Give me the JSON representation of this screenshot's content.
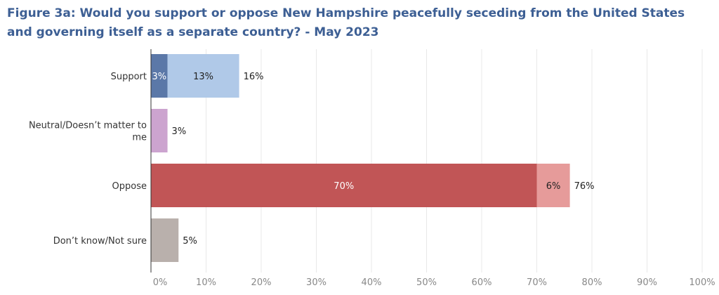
{
  "chart_data": {
    "type": "bar",
    "orientation": "horizontal",
    "stacked": true,
    "title": "Figure 3a: Would you support or oppose New Hampshire peacefully seceding from the United States and governing itself as a separate country? - May 2023",
    "categories": [
      {
        "name": "Support",
        "lines": [
          "Support"
        ],
        "total_label": "16%",
        "total": 16,
        "segments": [
          {
            "value": 3,
            "label": "3%",
            "color": "#5b78a8",
            "label_color": "#ffffff"
          },
          {
            "value": 13,
            "label": "13%",
            "color": "#b0c9e8",
            "label_color": "#222222"
          }
        ]
      },
      {
        "name": "Neutral/Doesn’t matter to me",
        "lines": [
          "Neutral/Doesn’t matter to",
          "me"
        ],
        "total_label": "3%",
        "total": 3,
        "segments": [
          {
            "value": 3,
            "label": "",
            "color": "#cca4cf",
            "label_color": "#222222"
          }
        ]
      },
      {
        "name": "Oppose",
        "lines": [
          "Oppose"
        ],
        "total_label": "76%",
        "total": 76,
        "segments": [
          {
            "value": 70,
            "label": "70%",
            "color": "#c15556",
            "label_color": "#ffffff"
          },
          {
            "value": 6,
            "label": "6%",
            "color": "#e69b9a",
            "label_color": "#222222"
          }
        ]
      },
      {
        "name": "Don’t know/Not sure",
        "lines": [
          "Don’t know/Not sure"
        ],
        "total_label": "5%",
        "total": 5,
        "segments": [
          {
            "value": 5,
            "label": "",
            "color": "#b9b0ac",
            "label_color": "#222222"
          }
        ]
      }
    ],
    "x_ticks": [
      0,
      10,
      20,
      30,
      40,
      50,
      60,
      70,
      80,
      90,
      100
    ],
    "x_tick_labels": [
      "0%",
      "10%",
      "20%",
      "30%",
      "40%",
      "50%",
      "60%",
      "70%",
      "80%",
      "90%",
      "100%"
    ],
    "xlim": [
      0,
      100
    ],
    "grid": true,
    "grid_color": "#e8e8e8",
    "axis_color": "#333333"
  }
}
